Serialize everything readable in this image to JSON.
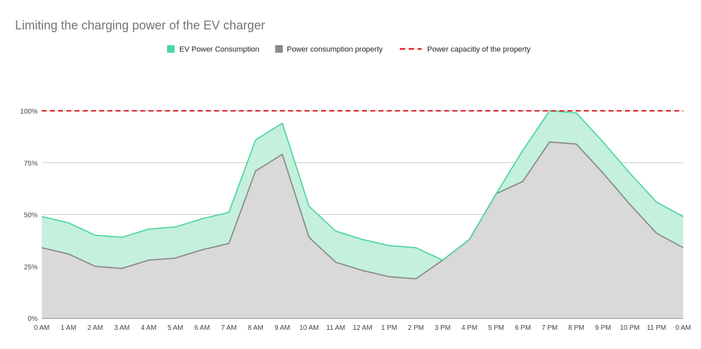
{
  "chart_data": {
    "type": "area",
    "title": "Limiting the charging power of the EV charger",
    "xlabel": "",
    "ylabel": "",
    "categories": [
      "0 AM",
      "1 AM",
      "2 AM",
      "3 AM",
      "4 AM",
      "5 AM",
      "6 AM",
      "7 AM",
      "8 AM",
      "9 AM",
      "10 AM",
      "11 AM",
      "12 AM",
      "1 PM",
      "2 PM",
      "3 PM",
      "4 PM",
      "5 PM",
      "6 PM",
      "7 PM",
      "8 PM",
      "9 PM",
      "10 PM",
      "11 PM",
      "0 AM"
    ],
    "ylim": [
      0,
      100
    ],
    "yticks": [
      0,
      25,
      50,
      75,
      100
    ],
    "ytick_labels": [
      "0%",
      "25%",
      "50%",
      "75%",
      "100%"
    ],
    "grid": true,
    "legend_position": "top-center",
    "series": [
      {
        "name": "EV Power Consumption",
        "color": "#4fd6a0",
        "fill": "#c4f0dc",
        "values": [
          49,
          46,
          40,
          39,
          43,
          44,
          48,
          51,
          86,
          94,
          54,
          42,
          38,
          35,
          34,
          28,
          38,
          60,
          81,
          100,
          99,
          85,
          70,
          56,
          49
        ]
      },
      {
        "name": "Power consumption property",
        "color": "#8a8a8a",
        "fill": "#d9d9d9",
        "values": [
          34,
          31,
          25,
          24,
          28,
          29,
          33,
          36,
          71,
          79,
          39,
          27,
          23,
          20,
          19,
          28,
          38,
          60,
          66,
          85,
          84,
          70,
          55,
          41,
          34
        ]
      },
      {
        "name": "Power capacitiy of the property",
        "color": "#e8202a",
        "style": "dashed",
        "values": [
          100,
          100,
          100,
          100,
          100,
          100,
          100,
          100,
          100,
          100,
          100,
          100,
          100,
          100,
          100,
          100,
          100,
          100,
          100,
          100,
          100,
          100,
          100,
          100,
          100
        ]
      }
    ]
  }
}
